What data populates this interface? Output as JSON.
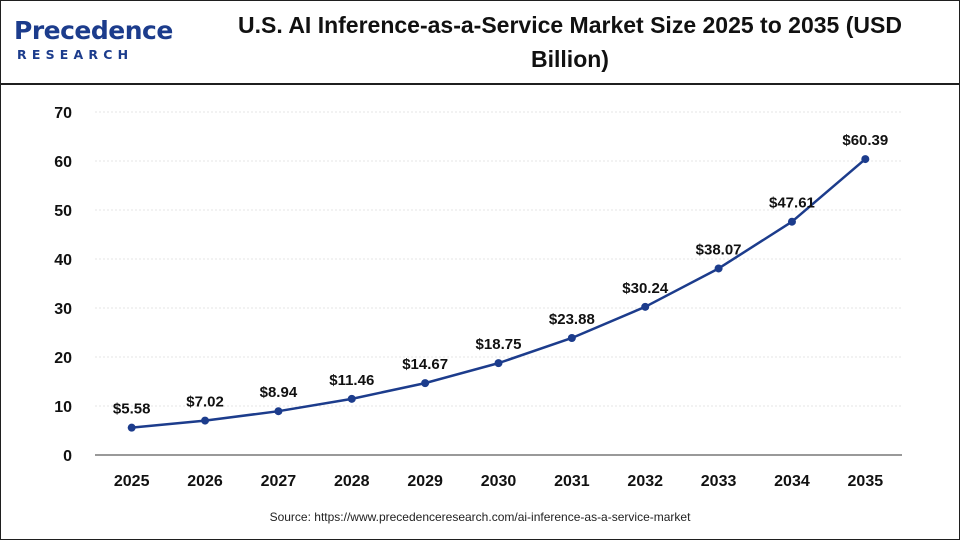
{
  "header": {
    "logo_main": "Precedence",
    "logo_sub": "RESEARCH",
    "title": "U.S. AI Inference-as-a-Service Market Size 2025 to 2035 (USD Billion)"
  },
  "source": "Source: https://www.precedenceresearch.com/ai-inference-as-a-service-market",
  "colors": {
    "line": "#1c3c8c",
    "point": "#1c3c8c",
    "grid": "#e6e6e6",
    "axis": "#333333"
  },
  "chart_data": {
    "type": "line",
    "title": "U.S. AI Inference-as-a-Service Market Size 2025 to 2035 (USD Billion)",
    "xlabel": "",
    "ylabel": "",
    "categories": [
      "2025",
      "2026",
      "2027",
      "2028",
      "2029",
      "2030",
      "2031",
      "2032",
      "2033",
      "2034",
      "2035"
    ],
    "values": [
      5.58,
      7.02,
      8.94,
      11.46,
      14.67,
      18.75,
      23.88,
      30.24,
      38.07,
      47.61,
      60.39
    ],
    "data_labels": [
      "$5.58",
      "$7.02",
      "$8.94",
      "$11.46",
      "$14.67",
      "$18.75",
      "$23.88",
      "$30.24",
      "$38.07",
      "$47.61",
      "$60.39"
    ],
    "ylim": [
      0,
      70
    ],
    "yticks": [
      0,
      10,
      20,
      30,
      40,
      50,
      60,
      70
    ],
    "grid": true,
    "legend": "none"
  }
}
